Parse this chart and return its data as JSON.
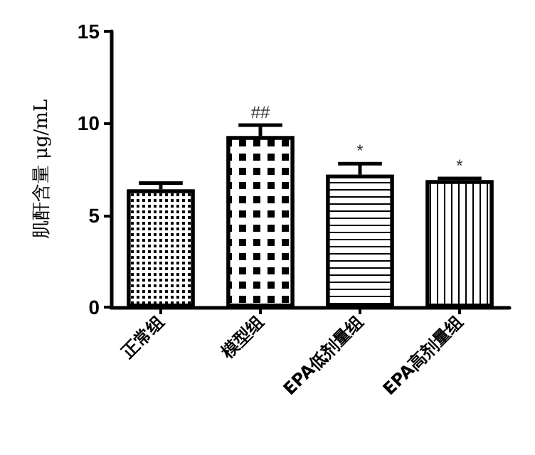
{
  "chart_data": {
    "type": "bar",
    "ylabel": "肌酐含量 μg/mL",
    "categories": [
      "正常组",
      "模型组",
      "EPA低剂量组",
      "EPA高剂量组"
    ],
    "values": [
      6.4,
      9.3,
      7.2,
      6.9
    ],
    "errors": [
      0.35,
      0.6,
      0.6,
      0.1
    ],
    "color": "#000000",
    "ylim": [
      0,
      15
    ],
    "yticks": [
      0,
      5,
      10,
      15
    ],
    "grid": false,
    "annotations": [
      {
        "text": "##",
        "x": "模型组",
        "y": 9.9
      },
      {
        "text": "*",
        "x": "EPA低剂量组",
        "y": 7.8
      },
      {
        "text": "*",
        "x": "EPA高剂量组",
        "y": 7.0
      }
    ]
  }
}
